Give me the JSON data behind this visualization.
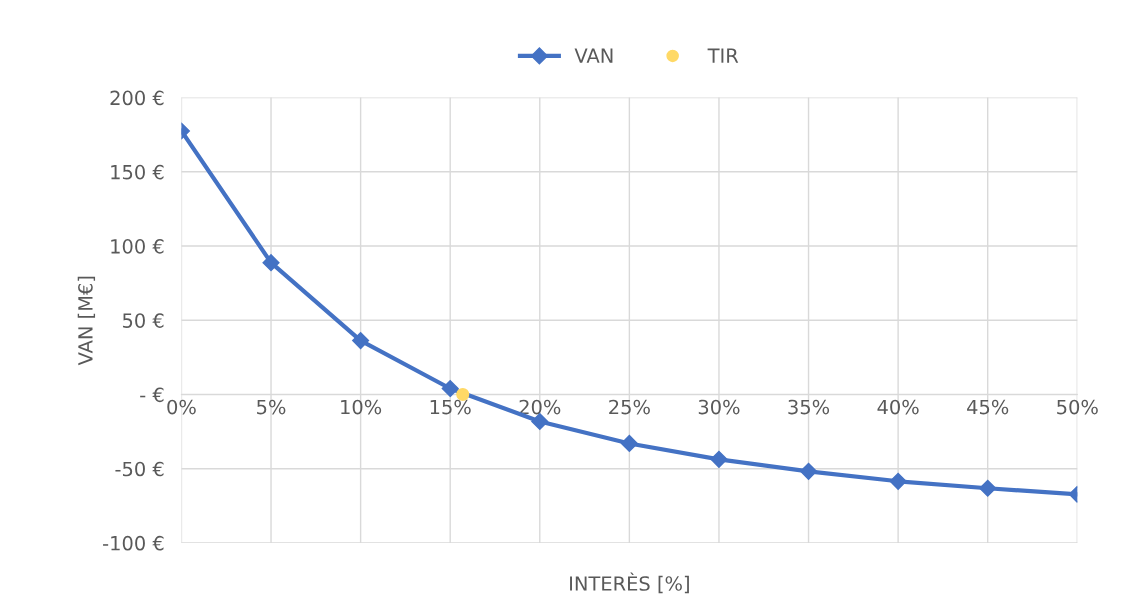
{
  "chart_data": {
    "type": "line",
    "xlabel": "INTERÈS [%]",
    "ylabel": "VAN [M€]",
    "xlim": [
      0,
      50
    ],
    "xticks": [
      {
        "value": 0,
        "label": "0%"
      },
      {
        "value": 5,
        "label": "5%"
      },
      {
        "value": 10,
        "label": "10%"
      },
      {
        "value": 15,
        "label": "15%"
      },
      {
        "value": 20,
        "label": "20%"
      },
      {
        "value": 25,
        "label": "25%"
      },
      {
        "value": 30,
        "label": "30%"
      },
      {
        "value": 35,
        "label": "35%"
      },
      {
        "value": 40,
        "label": "40%"
      },
      {
        "value": 45,
        "label": "45%"
      },
      {
        "value": 50,
        "label": "50%"
      }
    ],
    "ylim": [
      -100,
      200
    ],
    "yticks": [
      {
        "value": -100,
        "label": "-100 €"
      },
      {
        "value": -50,
        "label": "-50 €"
      },
      {
        "value": 0,
        "label": " - €"
      },
      {
        "value": 50,
        "label": "50 €"
      },
      {
        "value": 100,
        "label": "100 €"
      },
      {
        "value": 150,
        "label": "150 €"
      },
      {
        "value": 200,
        "label": "200 €"
      }
    ],
    "grid": true,
    "legend": "top",
    "series": [
      {
        "name": "VAN",
        "color": "#4472c4",
        "marker": "diamond",
        "x": [
          0,
          5,
          10,
          15,
          20,
          25,
          30,
          35,
          40,
          45,
          50
        ],
        "values": [
          177.5,
          88.8,
          36.3,
          4,
          -18.2,
          -33,
          -43.7,
          -51.8,
          -58.5,
          -63.2,
          -67.3
        ]
      },
      {
        "name": "TIR",
        "type": "scatter",
        "color": "#ffd966",
        "marker": "circle",
        "x": [
          15.7
        ],
        "values": [
          0
        ]
      }
    ]
  }
}
